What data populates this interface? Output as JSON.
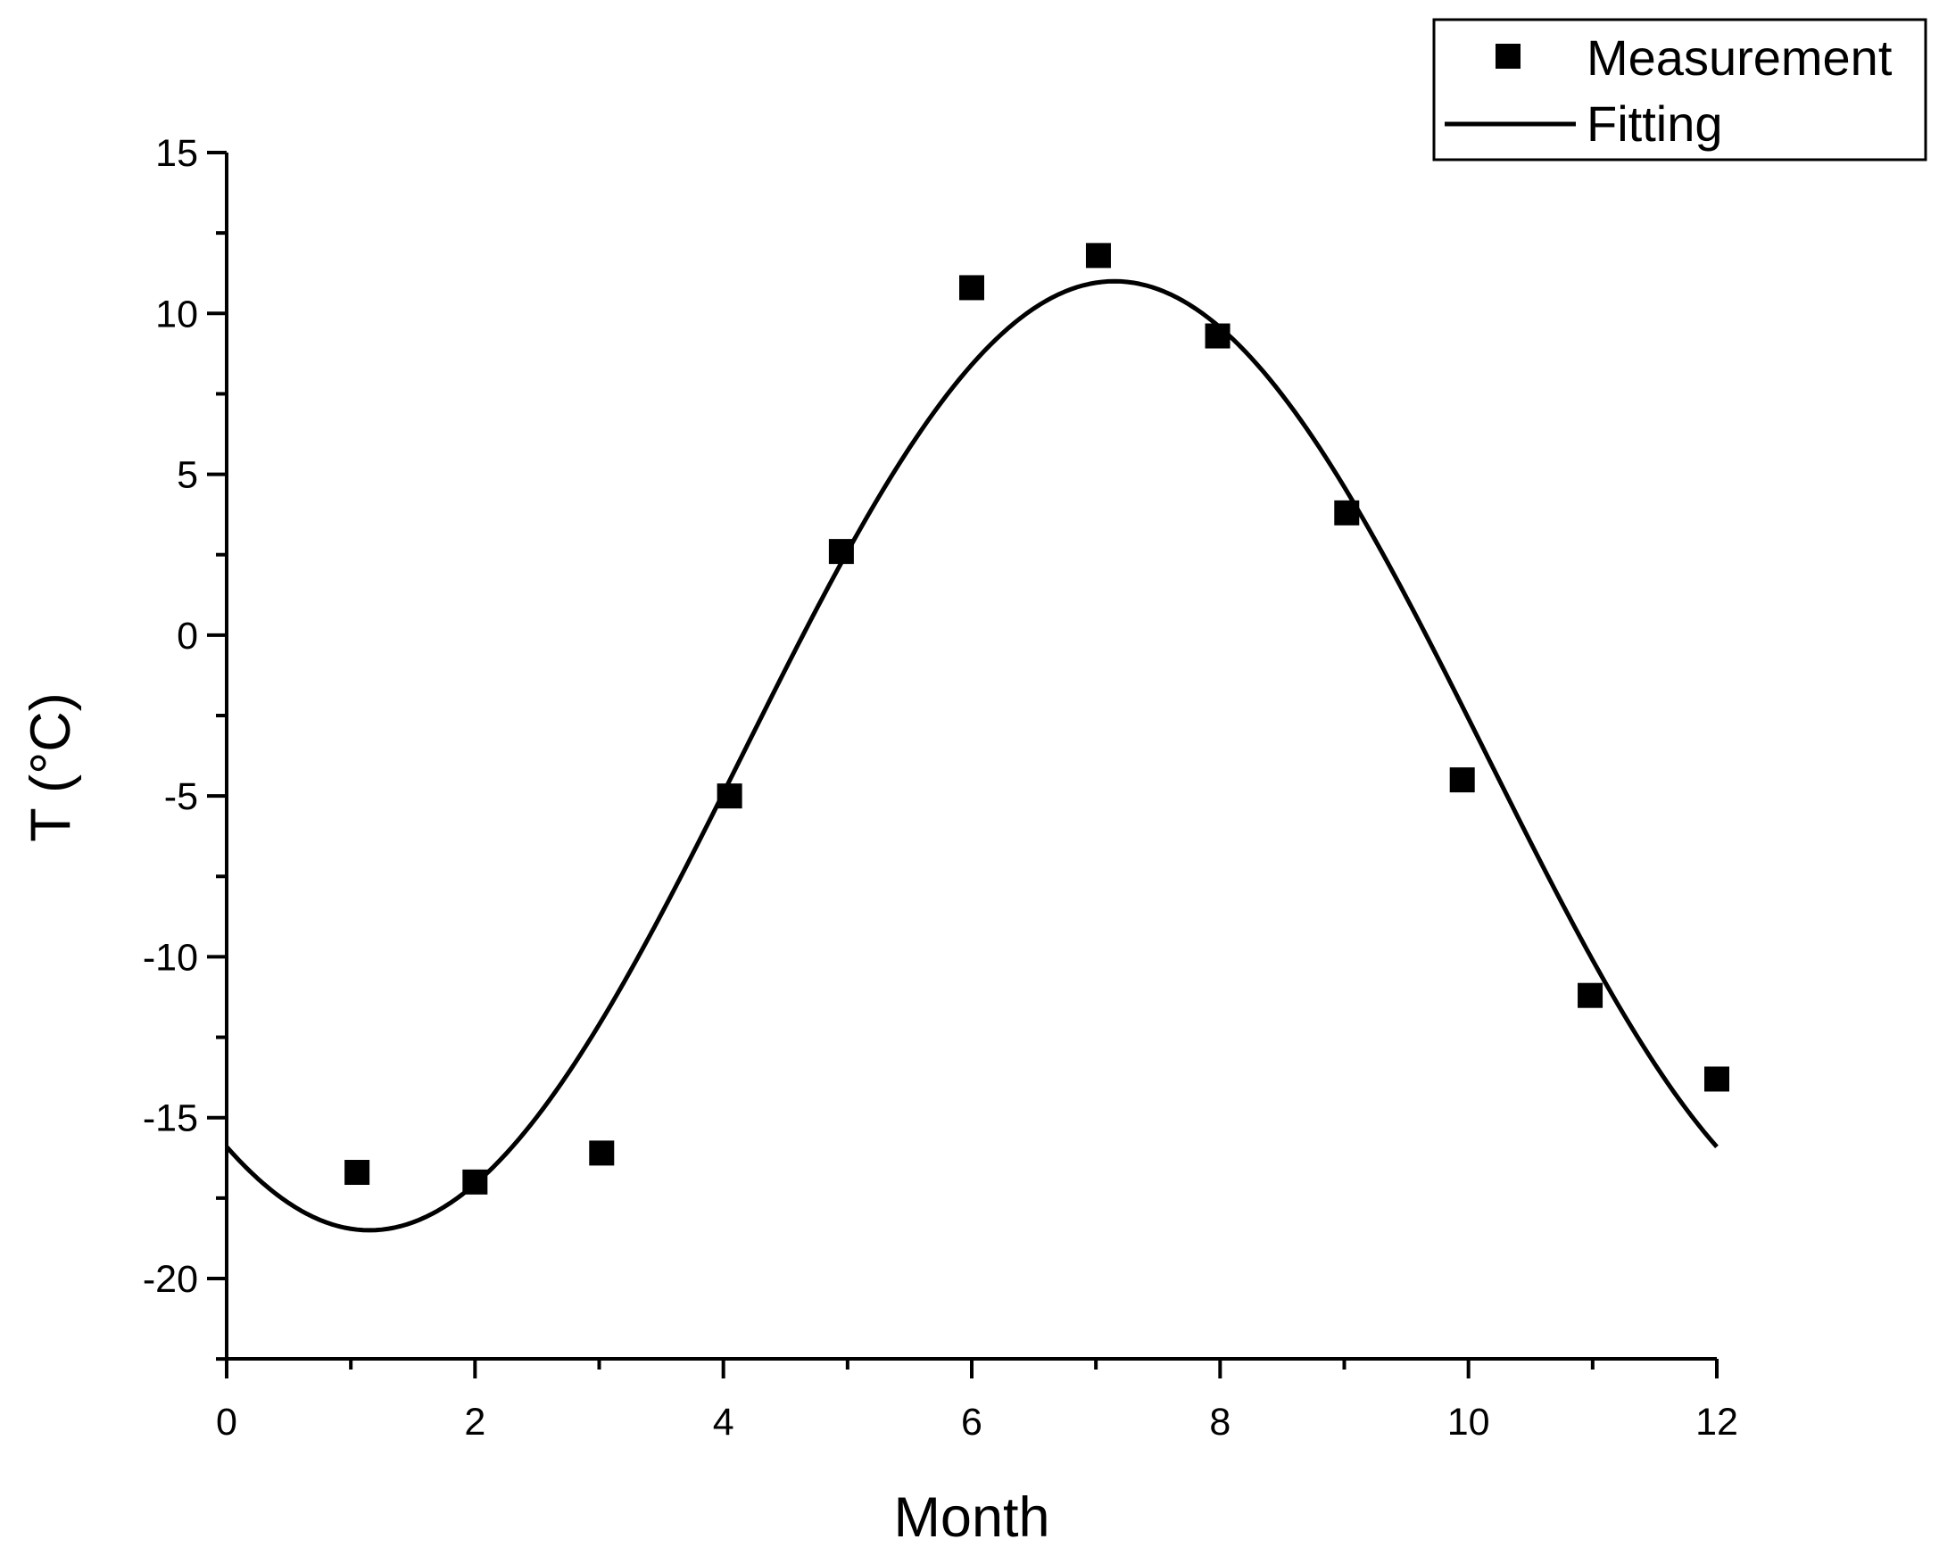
{
  "chart_data": {
    "type": "scatter",
    "title": "",
    "xlabel": "Month",
    "ylabel": "T (°C)",
    "xlim": [
      0,
      12
    ],
    "ylim": [
      -22.5,
      15
    ],
    "xticks": [
      0,
      2,
      4,
      6,
      8,
      10,
      12
    ],
    "xtick_labels": [
      "0",
      "2",
      "4",
      "6",
      "8",
      "10",
      "12"
    ],
    "yticks": [
      15,
      10,
      5,
      0,
      -5,
      -10,
      -15,
      -20
    ],
    "ytick_labels": [
      "15",
      "10",
      "5",
      "0",
      "-5",
      "-10",
      "-15",
      "-20"
    ],
    "grid": false,
    "legend_position": "top-right",
    "series": [
      {
        "name": "Measurement",
        "kind": "scatter",
        "marker": "square",
        "x": [
          1.05,
          2.0,
          3.02,
          4.05,
          4.95,
          6.0,
          7.02,
          7.98,
          9.02,
          9.95,
          10.98,
          12.0
        ],
        "y": [
          -16.7,
          -17.0,
          -16.1,
          -5.0,
          2.6,
          10.8,
          11.8,
          9.3,
          3.8,
          -4.5,
          -11.2,
          -13.8
        ]
      },
      {
        "name": "Fitting",
        "kind": "line",
        "model": "sine",
        "offset": -3.75,
        "amplitude": 14.75,
        "period": 12,
        "phase_month": 4.15,
        "x_range": [
          0,
          12
        ]
      }
    ]
  },
  "colors": {
    "axis": "#000000",
    "marker": "#000000",
    "line": "#000000",
    "background": "#ffffff"
  }
}
